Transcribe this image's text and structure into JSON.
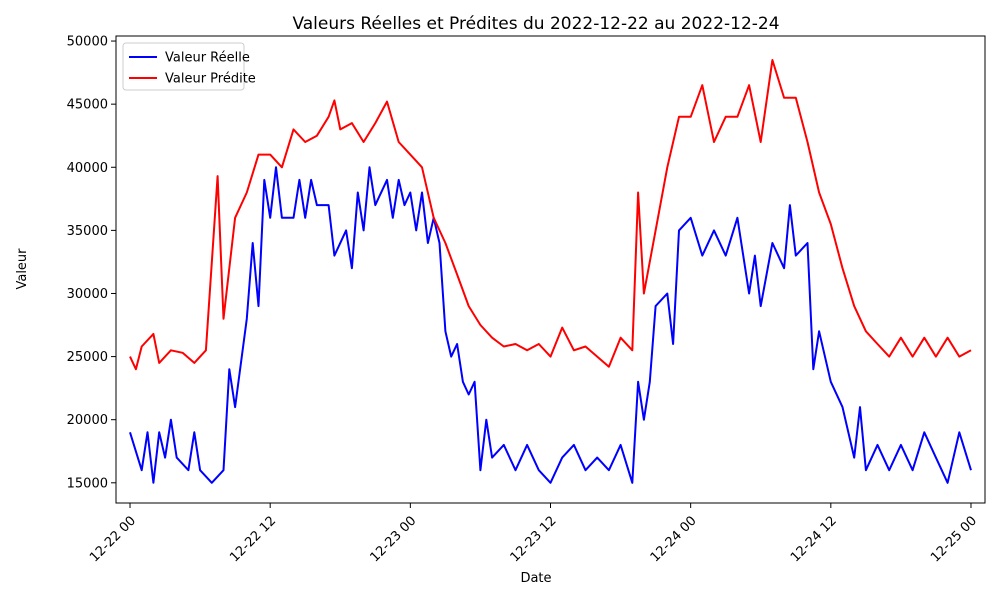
{
  "chart_data": {
    "type": "line",
    "title": "Valeurs Réelles et Prédites du 2022-12-22 au 2022-12-24",
    "xlabel": "Date",
    "ylabel": "Valeur",
    "ylim": [
      13400,
      50400
    ],
    "xlim": [
      "2022-12-21 22:48",
      "2022-12-25 01:12"
    ],
    "x_tick_labels": [
      "12-22 00",
      "12-22 12",
      "12-23 00",
      "12-23 12",
      "12-24 00",
      "12-24 12",
      "12-25 00"
    ],
    "y_tick_labels": [
      "15000",
      "20000",
      "25000",
      "30000",
      "35000",
      "40000",
      "45000",
      "50000"
    ],
    "grid": false,
    "legend_position": "upper-left",
    "series_colors": [
      "#0000ff",
      "#ff0000"
    ],
    "series": [
      {
        "name": "Valeur Réelle",
        "color": "#0000ff",
        "points": [
          [
            "2022-12-22 00:00",
            19000
          ],
          [
            "2022-12-22 01:00",
            16000
          ],
          [
            "2022-12-22 01:30",
            19000
          ],
          [
            "2022-12-22 02:00",
            15000
          ],
          [
            "2022-12-22 02:30",
            19000
          ],
          [
            "2022-12-22 03:00",
            17000
          ],
          [
            "2022-12-22 03:30",
            20000
          ],
          [
            "2022-12-22 04:00",
            17000
          ],
          [
            "2022-12-22 05:00",
            16000
          ],
          [
            "2022-12-22 05:30",
            19000
          ],
          [
            "2022-12-22 06:00",
            16000
          ],
          [
            "2022-12-22 07:00",
            15000
          ],
          [
            "2022-12-22 08:00",
            16000
          ],
          [
            "2022-12-22 08:30",
            24000
          ],
          [
            "2022-12-22 09:00",
            21000
          ],
          [
            "2022-12-22 10:00",
            28000
          ],
          [
            "2022-12-22 10:30",
            34000
          ],
          [
            "2022-12-22 11:00",
            29000
          ],
          [
            "2022-12-22 11:30",
            39000
          ],
          [
            "2022-12-22 12:00",
            36000
          ],
          [
            "2022-12-22 12:30",
            40000
          ],
          [
            "2022-12-22 13:00",
            36000
          ],
          [
            "2022-12-22 14:00",
            36000
          ],
          [
            "2022-12-22 14:30",
            39000
          ],
          [
            "2022-12-22 15:00",
            36000
          ],
          [
            "2022-12-22 15:30",
            39000
          ],
          [
            "2022-12-22 16:00",
            37000
          ],
          [
            "2022-12-22 17:00",
            37000
          ],
          [
            "2022-12-22 17:30",
            33000
          ],
          [
            "2022-12-22 18:30",
            35000
          ],
          [
            "2022-12-22 19:00",
            32000
          ],
          [
            "2022-12-22 19:30",
            38000
          ],
          [
            "2022-12-22 20:00",
            35000
          ],
          [
            "2022-12-22 20:30",
            40000
          ],
          [
            "2022-12-22 21:00",
            37000
          ],
          [
            "2022-12-22 22:00",
            39000
          ],
          [
            "2022-12-22 22:30",
            36000
          ],
          [
            "2022-12-22 23:00",
            39000
          ],
          [
            "2022-12-22 23:30",
            37000
          ],
          [
            "2022-12-23 00:00",
            38000
          ],
          [
            "2022-12-23 00:30",
            35000
          ],
          [
            "2022-12-23 01:00",
            38000
          ],
          [
            "2022-12-23 01:30",
            34000
          ],
          [
            "2022-12-23 02:00",
            36000
          ],
          [
            "2022-12-23 02:30",
            34000
          ],
          [
            "2022-12-23 03:00",
            27000
          ],
          [
            "2022-12-23 03:30",
            25000
          ],
          [
            "2022-12-23 04:00",
            26000
          ],
          [
            "2022-12-23 04:30",
            23000
          ],
          [
            "2022-12-23 05:00",
            22000
          ],
          [
            "2022-12-23 05:30",
            23000
          ],
          [
            "2022-12-23 06:00",
            16000
          ],
          [
            "2022-12-23 06:30",
            20000
          ],
          [
            "2022-12-23 07:00",
            17000
          ],
          [
            "2022-12-23 08:00",
            18000
          ],
          [
            "2022-12-23 09:00",
            16000
          ],
          [
            "2022-12-23 10:00",
            18000
          ],
          [
            "2022-12-23 11:00",
            16000
          ],
          [
            "2022-12-23 12:00",
            15000
          ],
          [
            "2022-12-23 13:00",
            17000
          ],
          [
            "2022-12-23 14:00",
            18000
          ],
          [
            "2022-12-23 15:00",
            16000
          ],
          [
            "2022-12-23 16:00",
            17000
          ],
          [
            "2022-12-23 17:00",
            16000
          ],
          [
            "2022-12-23 18:00",
            18000
          ],
          [
            "2022-12-23 19:00",
            15000
          ],
          [
            "2022-12-23 19:30",
            23000
          ],
          [
            "2022-12-23 20:00",
            20000
          ],
          [
            "2022-12-23 20:30",
            23000
          ],
          [
            "2022-12-23 21:00",
            29000
          ],
          [
            "2022-12-23 22:00",
            30000
          ],
          [
            "2022-12-23 22:30",
            26000
          ],
          [
            "2022-12-23 23:00",
            35000
          ],
          [
            "2022-12-24 00:00",
            36000
          ],
          [
            "2022-12-24 01:00",
            33000
          ],
          [
            "2022-12-24 02:00",
            35000
          ],
          [
            "2022-12-24 03:00",
            33000
          ],
          [
            "2022-12-24 04:00",
            36000
          ],
          [
            "2022-12-24 05:00",
            30000
          ],
          [
            "2022-12-24 05:30",
            33000
          ],
          [
            "2022-12-24 06:00",
            29000
          ],
          [
            "2022-12-24 07:00",
            34000
          ],
          [
            "2022-12-24 08:00",
            32000
          ],
          [
            "2022-12-24 08:30",
            37000
          ],
          [
            "2022-12-24 09:00",
            33000
          ],
          [
            "2022-12-24 10:00",
            34000
          ],
          [
            "2022-12-24 10:30",
            24000
          ],
          [
            "2022-12-24 11:00",
            27000
          ],
          [
            "2022-12-24 12:00",
            23000
          ],
          [
            "2022-12-24 13:00",
            21000
          ],
          [
            "2022-12-24 14:00",
            17000
          ],
          [
            "2022-12-24 14:30",
            21000
          ],
          [
            "2022-12-24 15:00",
            16000
          ],
          [
            "2022-12-24 16:00",
            18000
          ],
          [
            "2022-12-24 17:00",
            16000
          ],
          [
            "2022-12-24 18:00",
            18000
          ],
          [
            "2022-12-24 19:00",
            16000
          ],
          [
            "2022-12-24 20:00",
            19000
          ],
          [
            "2022-12-24 21:00",
            17000
          ],
          [
            "2022-12-24 22:00",
            15000
          ],
          [
            "2022-12-24 23:00",
            19000
          ],
          [
            "2022-12-25 00:00",
            16000
          ]
        ]
      },
      {
        "name": "Valeur Prédite",
        "color": "#ff0000",
        "points": [
          [
            "2022-12-22 00:00",
            25000
          ],
          [
            "2022-12-22 00:30",
            24000
          ],
          [
            "2022-12-22 01:00",
            25800
          ],
          [
            "2022-12-22 02:00",
            26800
          ],
          [
            "2022-12-22 02:30",
            24500
          ],
          [
            "2022-12-22 03:30",
            25500
          ],
          [
            "2022-12-22 04:30",
            25300
          ],
          [
            "2022-12-22 05:30",
            24500
          ],
          [
            "2022-12-22 06:30",
            25500
          ],
          [
            "2022-12-22 07:30",
            39300
          ],
          [
            "2022-12-22 08:00",
            28000
          ],
          [
            "2022-12-22 09:00",
            36000
          ],
          [
            "2022-12-22 10:00",
            38000
          ],
          [
            "2022-12-22 11:00",
            41000
          ],
          [
            "2022-12-22 12:00",
            41000
          ],
          [
            "2022-12-22 13:00",
            40000
          ],
          [
            "2022-12-22 14:00",
            43000
          ],
          [
            "2022-12-22 15:00",
            42000
          ],
          [
            "2022-12-22 16:00",
            42500
          ],
          [
            "2022-12-22 17:00",
            44000
          ],
          [
            "2022-12-22 17:30",
            45300
          ],
          [
            "2022-12-22 18:00",
            43000
          ],
          [
            "2022-12-22 19:00",
            43500
          ],
          [
            "2022-12-22 20:00",
            42000
          ],
          [
            "2022-12-22 21:00",
            43500
          ],
          [
            "2022-12-22 22:00",
            45200
          ],
          [
            "2022-12-22 23:00",
            42000
          ],
          [
            "2022-12-23 00:00",
            41000
          ],
          [
            "2022-12-23 01:00",
            40000
          ],
          [
            "2022-12-23 02:00",
            36000
          ],
          [
            "2022-12-23 03:00",
            34000
          ],
          [
            "2022-12-23 04:00",
            31500
          ],
          [
            "2022-12-23 05:00",
            29000
          ],
          [
            "2022-12-23 06:00",
            27500
          ],
          [
            "2022-12-23 07:00",
            26500
          ],
          [
            "2022-12-23 08:00",
            25800
          ],
          [
            "2022-12-23 09:00",
            26000
          ],
          [
            "2022-12-23 10:00",
            25500
          ],
          [
            "2022-12-23 11:00",
            26000
          ],
          [
            "2022-12-23 12:00",
            25000
          ],
          [
            "2022-12-23 13:00",
            27300
          ],
          [
            "2022-12-23 14:00",
            25500
          ],
          [
            "2022-12-23 15:00",
            25800
          ],
          [
            "2022-12-23 16:00",
            25000
          ],
          [
            "2022-12-23 17:00",
            24200
          ],
          [
            "2022-12-23 18:00",
            26500
          ],
          [
            "2022-12-23 19:00",
            25500
          ],
          [
            "2022-12-23 19:30",
            38000
          ],
          [
            "2022-12-23 20:00",
            30000
          ],
          [
            "2022-12-23 21:00",
            35000
          ],
          [
            "2022-12-23 22:00",
            40000
          ],
          [
            "2022-12-23 23:00",
            44000
          ],
          [
            "2022-12-24 00:00",
            44000
          ],
          [
            "2022-12-24 01:00",
            46500
          ],
          [
            "2022-12-24 02:00",
            42000
          ],
          [
            "2022-12-24 03:00",
            44000
          ],
          [
            "2022-12-24 04:00",
            44000
          ],
          [
            "2022-12-24 05:00",
            46500
          ],
          [
            "2022-12-24 06:00",
            42000
          ],
          [
            "2022-12-24 07:00",
            48500
          ],
          [
            "2022-12-24 08:00",
            45500
          ],
          [
            "2022-12-24 09:00",
            45500
          ],
          [
            "2022-12-24 10:00",
            42000
          ],
          [
            "2022-12-24 11:00",
            38000
          ],
          [
            "2022-12-24 12:00",
            35500
          ],
          [
            "2022-12-24 13:00",
            32000
          ],
          [
            "2022-12-24 14:00",
            29000
          ],
          [
            "2022-12-24 15:00",
            27000
          ],
          [
            "2022-12-24 16:00",
            26000
          ],
          [
            "2022-12-24 17:00",
            25000
          ],
          [
            "2022-12-24 18:00",
            26500
          ],
          [
            "2022-12-24 19:00",
            25000
          ],
          [
            "2022-12-24 20:00",
            26500
          ],
          [
            "2022-12-24 21:00",
            25000
          ],
          [
            "2022-12-24 22:00",
            26500
          ],
          [
            "2022-12-24 23:00",
            25000
          ],
          [
            "2022-12-25 00:00",
            25500
          ]
        ]
      }
    ]
  }
}
